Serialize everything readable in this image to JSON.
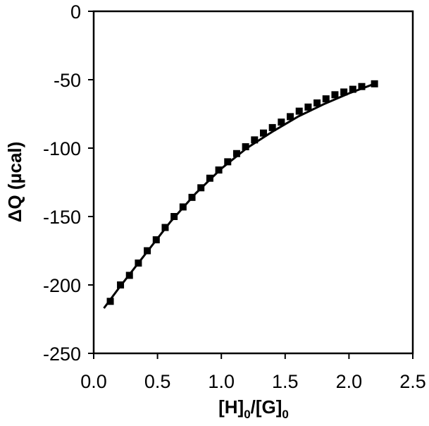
{
  "chart_data": {
    "type": "scatter",
    "title": "",
    "xlabel": {
      "parts": [
        "[H]",
        "0",
        "/[G]",
        "0"
      ]
    },
    "ylabel": "ΔQ (µcal)",
    "xlim": [
      0.0,
      2.5
    ],
    "ylim": [
      -250,
      0
    ],
    "xticks": [
      0.0,
      0.5,
      1.0,
      1.5,
      2.0,
      2.5
    ],
    "yticks": [
      0,
      -50,
      -100,
      -150,
      -200,
      -250
    ],
    "xtick_labels": [
      "0.0",
      "0.5",
      "1.0",
      "1.5",
      "2.0",
      "2.5"
    ],
    "ytick_labels": [
      "0",
      "-50",
      "-100",
      "-150",
      "-200",
      "-250"
    ],
    "grid": false,
    "legend": "none",
    "series": [
      {
        "kind": "points",
        "marker": "square",
        "color": "#000000",
        "x": [
          0.13,
          0.21,
          0.28,
          0.35,
          0.42,
          0.49,
          0.56,
          0.63,
          0.7,
          0.77,
          0.84,
          0.91,
          0.98,
          1.05,
          1.12,
          1.19,
          1.26,
          1.33,
          1.4,
          1.47,
          1.54,
          1.61,
          1.68,
          1.75,
          1.82,
          1.89,
          1.96,
          2.03,
          2.1,
          2.2
        ],
        "y": [
          -212,
          -200,
          -193,
          -184,
          -175,
          -167,
          -158,
          -150,
          -143,
          -136,
          -129,
          -122,
          -116,
          -110,
          -104,
          -99,
          -94,
          -89,
          -85,
          -81,
          -77,
          -73,
          -70,
          -67,
          -64,
          -61,
          -59,
          -57,
          -55,
          -53
        ]
      },
      {
        "kind": "fit-line",
        "color": "#000000",
        "x": [
          0.08,
          0.2,
          0.4,
          0.6,
          0.8,
          1.0,
          1.2,
          1.4,
          1.6,
          1.8,
          2.0,
          2.2
        ],
        "y": [
          -217,
          -202,
          -178,
          -154,
          -133,
          -115,
          -100,
          -88,
          -77,
          -68,
          -60,
          -53
        ]
      }
    ]
  }
}
